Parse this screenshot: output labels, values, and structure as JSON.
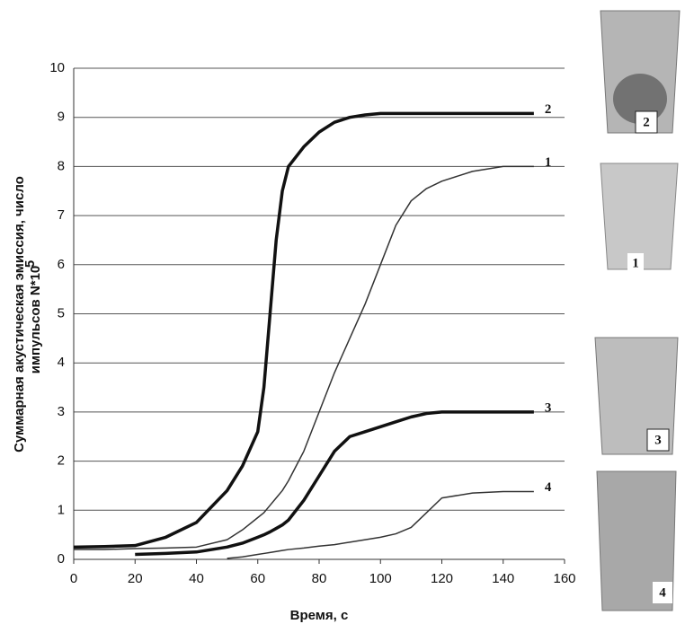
{
  "chart_data": {
    "type": "line",
    "xlabel": "Время, с",
    "ylabel": [
      "Суммарная акустическая эмиссия, число",
      "импульсов N*10"
    ],
    "ylabel_exponent": "5",
    "x": [
      0,
      10,
      20,
      30,
      40,
      50,
      55,
      60,
      62,
      64,
      66,
      68,
      70,
      75,
      80,
      85,
      90,
      95,
      100,
      105,
      110,
      115,
      120,
      130,
      140,
      150
    ],
    "series": [
      {
        "name": "2",
        "color": "#111111",
        "width": 3.5,
        "values": [
          0.25,
          0.26,
          0.28,
          0.45,
          0.75,
          1.4,
          1.9,
          2.6,
          3.5,
          5,
          6.5,
          7.5,
          8,
          8.4,
          8.7,
          8.9,
          9.0,
          9.05,
          9.08,
          9.08,
          9.08,
          9.08,
          9.08,
          9.08,
          9.08,
          9.08
        ]
      },
      {
        "name": "1",
        "color": "#333333",
        "width": 1.5,
        "values": [
          0.2,
          0.2,
          0.22,
          0.23,
          0.25,
          0.4,
          0.6,
          0.85,
          0.95,
          1.1,
          1.25,
          1.4,
          1.6,
          2.2,
          3,
          3.8,
          4.5,
          5.2,
          6,
          6.8,
          7.3,
          7.55,
          7.7,
          7.9,
          8.0,
          8.0
        ]
      },
      {
        "name": "3",
        "color": "#111111",
        "width": 3.5,
        "values": [
          null,
          null,
          0.1,
          0.12,
          0.15,
          0.25,
          0.33,
          0.45,
          0.5,
          0.56,
          0.63,
          0.7,
          0.8,
          1.2,
          1.7,
          2.2,
          2.5,
          2.6,
          2.7,
          2.8,
          2.9,
          2.97,
          3.0,
          3.0,
          3.0,
          3.0
        ]
      },
      {
        "name": "4",
        "color": "#333333",
        "width": 1.5,
        "values": [
          null,
          null,
          null,
          null,
          null,
          0.02,
          0.05,
          0.1,
          0.12,
          0.14,
          0.16,
          0.18,
          0.2,
          0.23,
          0.27,
          0.3,
          0.35,
          0.4,
          0.45,
          0.52,
          0.65,
          0.95,
          1.25,
          1.35,
          1.38,
          1.38
        ]
      }
    ],
    "xlim": [
      0,
      160
    ],
    "xticks": [
      0,
      20,
      40,
      60,
      80,
      100,
      120,
      140,
      160
    ],
    "ylim": [
      0,
      10
    ],
    "yticks": [
      0,
      1,
      2,
      3,
      4,
      5,
      6,
      7,
      8,
      9,
      10
    ],
    "grid": true
  }
}
